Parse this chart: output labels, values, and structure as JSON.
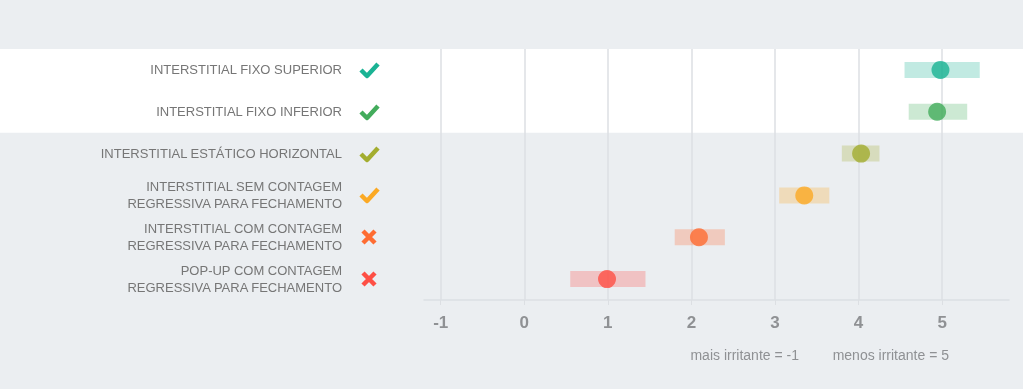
{
  "chart_data": {
    "type": "scatter",
    "orientation": "horizontal",
    "categories": [
      "INTERSTITIAL FIXO SUPERIOR",
      "INTERSTITIAL FIXO INFERIOR",
      "INTERSTITIAL ESTÁTICO HORIZONTAL",
      "INTERSTITIAL SEM CONTAGEM\nREGRESSIVA PARA FECHAMENTO",
      "INTERSTITIAL COM CONTAGEM\nREGRESSIVA PARA FECHAMENTO",
      "POP-UP COM CONTAGEM\nREGRESSIVA PARA FECHAMENTO"
    ],
    "values": [
      4.98,
      4.94,
      4.03,
      3.35,
      2.09,
      0.99
    ],
    "errors": [
      [
        4.55,
        5.45
      ],
      [
        4.6,
        5.3
      ],
      [
        3.8,
        4.25
      ],
      [
        3.05,
        3.65
      ],
      [
        1.8,
        2.4
      ],
      [
        0.55,
        1.45
      ]
    ],
    "colors": [
      "#1ab394",
      "#43ac5c",
      "#a3ad2f",
      "#fba924",
      "#fe6c32",
      "#fe4f45"
    ],
    "xlim": [
      -1.2,
      5.8
    ],
    "xticks": [
      -1,
      0,
      1,
      2,
      3,
      4,
      5
    ],
    "bands": [
      {
        "axis": "y",
        "from": "INTERSTITIAL FIXO SUPERIOR",
        "to": "INTERSTITIAL FIXO INFERIOR",
        "color": "#ffffff"
      }
    ],
    "annotations": [
      "mais irritante = -1",
      "menos irritante = 5"
    ],
    "grid": "x",
    "marker": "circle"
  }
}
